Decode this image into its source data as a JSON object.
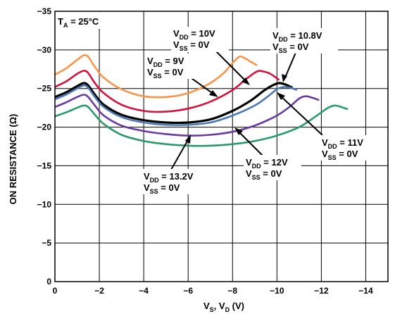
{
  "chart_data": {
    "type": "line",
    "title": "",
    "xlabel": {
      "main": "V",
      "sub1": "S",
      "mid": ", V",
      "sub2": "D",
      "tail": " (V)"
    },
    "ylabel": "ON RESISTANCE (Ω)",
    "xlim": [
      0,
      -15
    ],
    "ylim": [
      0,
      -35
    ],
    "x_ticks": [
      "0",
      "−2",
      "−4",
      "−6",
      "−8",
      "−10",
      "−12",
      "−14"
    ],
    "y_ticks": [
      "0",
      "−5",
      "−10",
      "−15",
      "−20",
      "−25",
      "−30",
      "−35"
    ],
    "x_tick_values": [
      0,
      -2,
      -4,
      -6,
      -8,
      -10,
      -12,
      -14
    ],
    "y_tick_values": [
      0,
      -5,
      -10,
      -15,
      -20,
      -25,
      -30,
      -35
    ],
    "grid": true,
    "condition": {
      "main": "T",
      "sub": "A",
      "tail": " = 25°C"
    },
    "series": [
      {
        "color": "#f7964a",
        "x": [
          0,
          -0.5,
          -1,
          -1.3,
          -1.5,
          -1.8,
          -2.2,
          -3,
          -4,
          -5,
          -6,
          -7,
          -7.6,
          -8,
          -8.3,
          -8.5,
          -8.8,
          -9.1
        ],
        "y": [
          -26.8,
          -27.6,
          -28.7,
          -29.3,
          -29.1,
          -27.8,
          -26.4,
          -24.9,
          -24.0,
          -23.9,
          -24.4,
          -25.7,
          -27.0,
          -28.3,
          -29.1,
          -29.0,
          -28.5,
          -28.0
        ]
      },
      {
        "color": "#d6103a",
        "x": [
          0,
          -0.5,
          -1,
          -1.3,
          -1.5,
          -1.8,
          -2.2,
          -3,
          -4,
          -5,
          -6,
          -7,
          -8,
          -8.6,
          -9.1,
          -9.4,
          -9.7,
          -10.1
        ],
        "y": [
          -25.2,
          -25.9,
          -26.9,
          -27.3,
          -27.0,
          -25.7,
          -24.4,
          -22.9,
          -22.1,
          -22.0,
          -22.4,
          -23.3,
          -24.8,
          -26.2,
          -27.2,
          -27.2,
          -26.9,
          -26.1
        ]
      },
      {
        "color": "#000000",
        "x": [
          0,
          -0.5,
          -1,
          -1.3,
          -1.5,
          -1.8,
          -2.2,
          -3,
          -4,
          -5,
          -6,
          -7,
          -8,
          -8.8,
          -9.4,
          -9.8,
          -10.1,
          -10.4,
          -10.7
        ],
        "y": [
          -23.9,
          -24.5,
          -25.3,
          -25.7,
          -25.4,
          -24.2,
          -22.9,
          -21.6,
          -20.9,
          -20.6,
          -20.6,
          -21.0,
          -22.1,
          -23.4,
          -24.7,
          -25.4,
          -25.7,
          -25.5,
          -25.1
        ]
      },
      {
        "color": "#4a78b4",
        "x": [
          0,
          -0.5,
          -1,
          -1.3,
          -1.5,
          -1.8,
          -2.2,
          -3,
          -4,
          -5,
          -6,
          -7,
          -8,
          -9,
          -9.6,
          -10,
          -10.3,
          -10.6,
          -10.9
        ],
        "y": [
          -23.6,
          -24.2,
          -25.0,
          -25.4,
          -25.1,
          -23.9,
          -22.6,
          -21.3,
          -20.6,
          -20.3,
          -20.3,
          -20.6,
          -21.5,
          -22.8,
          -24.0,
          -24.9,
          -25.2,
          -25.1,
          -24.8
        ]
      },
      {
        "color": "#6a3aa2",
        "x": [
          0,
          -0.5,
          -1,
          -1.3,
          -1.5,
          -1.8,
          -2.2,
          -3,
          -4,
          -5,
          -6,
          -7,
          -8,
          -9,
          -10,
          -10.6,
          -11,
          -11.3,
          -11.6,
          -11.9
        ],
        "y": [
          -22.6,
          -23.2,
          -23.9,
          -24.2,
          -23.9,
          -22.8,
          -21.5,
          -20.2,
          -19.5,
          -19.1,
          -18.9,
          -19.0,
          -19.4,
          -20.2,
          -21.5,
          -22.7,
          -23.7,
          -24.0,
          -23.8,
          -23.5
        ]
      },
      {
        "color": "#2b9a6a",
        "x": [
          0,
          -0.5,
          -1,
          -1.3,
          -1.5,
          -1.8,
          -2.2,
          -3,
          -4,
          -5,
          -6,
          -7,
          -8,
          -9,
          -10,
          -11,
          -11.8,
          -12.3,
          -12.6,
          -12.9,
          -13.2
        ],
        "y": [
          -21.4,
          -21.9,
          -22.5,
          -22.8,
          -22.6,
          -21.6,
          -20.4,
          -19.0,
          -18.2,
          -17.8,
          -17.6,
          -17.6,
          -17.8,
          -18.2,
          -18.9,
          -20.0,
          -21.5,
          -22.5,
          -22.8,
          -22.6,
          -22.3
        ]
      }
    ],
    "annotations": [
      {
        "lines": [
          {
            "main": "V",
            "sub": "DD",
            "tail": " = 9V"
          },
          {
            "main": "V",
            "sub": "SS",
            "tail": " = 0V"
          }
        ]
      },
      {
        "lines": [
          {
            "main": "V",
            "sub": "DD",
            "tail": " = 10V"
          },
          {
            "main": "V",
            "sub": "SS",
            "tail": " = 0V"
          }
        ]
      },
      {
        "lines": [
          {
            "main": "V",
            "sub": "DD",
            "tail": " = 10.8V"
          },
          {
            "main": "V",
            "sub": "SS",
            "tail": " = 0V"
          }
        ]
      },
      {
        "lines": [
          {
            "main": "V",
            "sub": "DD",
            "tail": " = 11V"
          },
          {
            "main": "V",
            "sub": "SS",
            "tail": " = 0V"
          }
        ]
      },
      {
        "lines": [
          {
            "main": "V",
            "sub": "DD",
            "tail": " = 12V"
          },
          {
            "main": "V",
            "sub": "SS",
            "tail": " = 0V"
          }
        ]
      },
      {
        "lines": [
          {
            "main": "V",
            "sub": "DD",
            "tail": " = 13.2V"
          },
          {
            "main": "V",
            "sub": "SS",
            "tail": " = 0V"
          }
        ]
      }
    ]
  }
}
